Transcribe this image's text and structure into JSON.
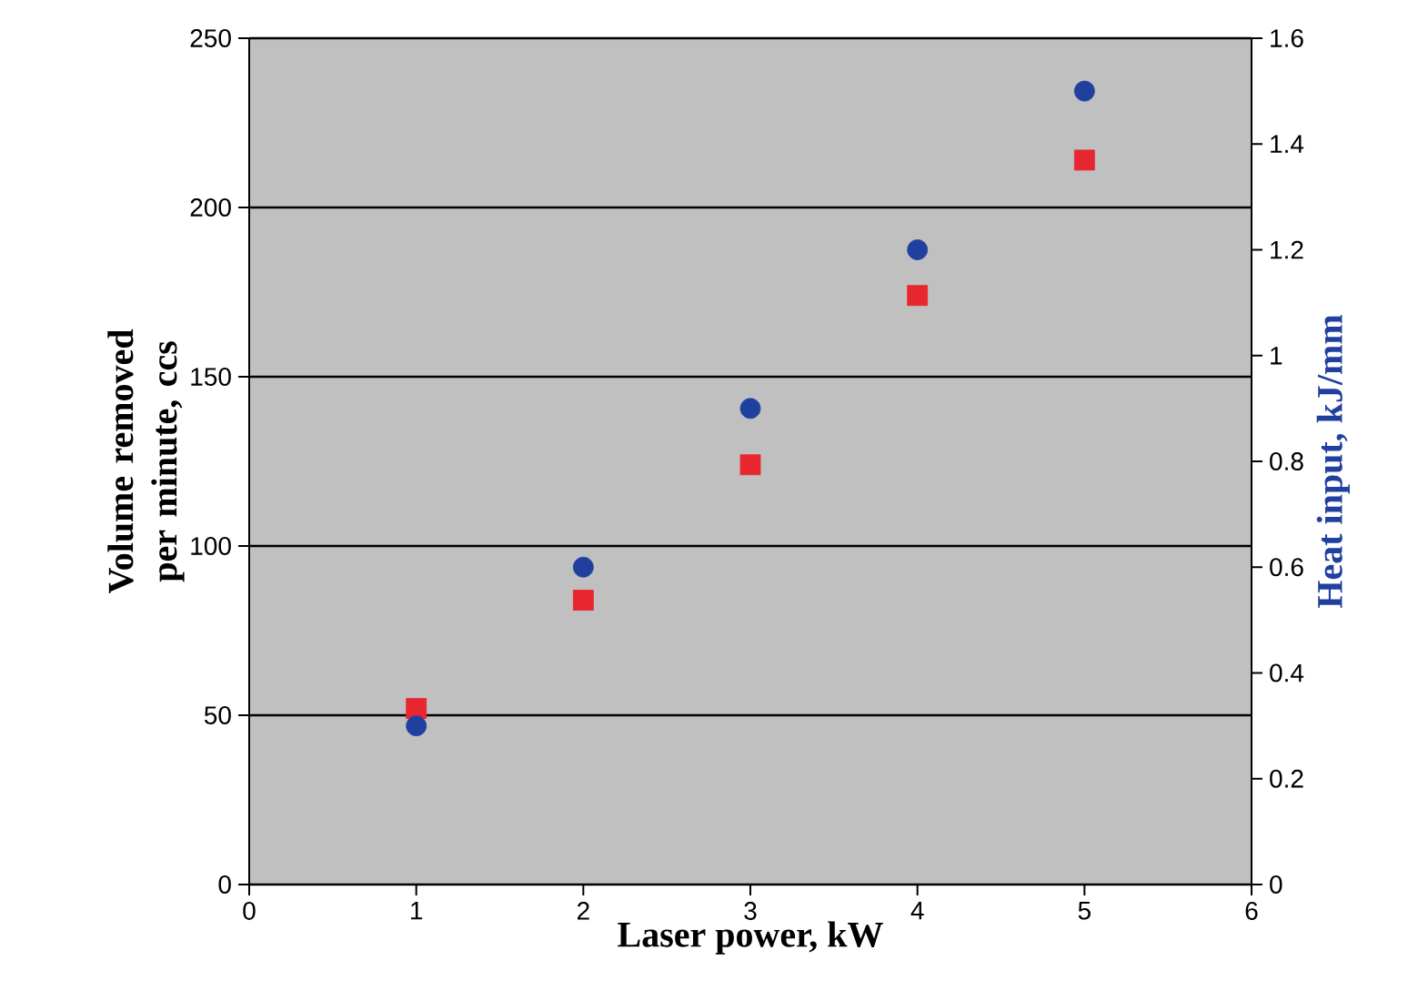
{
  "chart_data": {
    "type": "scatter",
    "xlabel": "Laser power, kW",
    "ylabel": "Volume removed per minute, ccs",
    "y2label": "Heat input, kJ/mm",
    "x": [
      1,
      2,
      3,
      4,
      5
    ],
    "series": [
      {
        "color": "#e8262f",
        "marker": "square",
        "values": [
          52,
          84,
          124,
          174,
          214
        ]
      },
      {
        "color": "#2040a0",
        "marker": "circle",
        "axis": "y2",
        "values": [
          0.3,
          0.6,
          0.9,
          1.2,
          1.5
        ]
      }
    ],
    "xlim": [
      0,
      6
    ],
    "xticks": [
      0,
      1,
      2,
      3,
      4,
      5,
      6
    ],
    "ylim": [
      0,
      250
    ],
    "yticks": [
      0,
      50,
      100,
      150,
      200,
      250
    ],
    "y2lim": [
      0,
      1.6
    ],
    "y2ticks": [
      0,
      0.2,
      0.4,
      0.6,
      0.8,
      1,
      1.2,
      1.4,
      1.6
    ],
    "grid": "y"
  }
}
